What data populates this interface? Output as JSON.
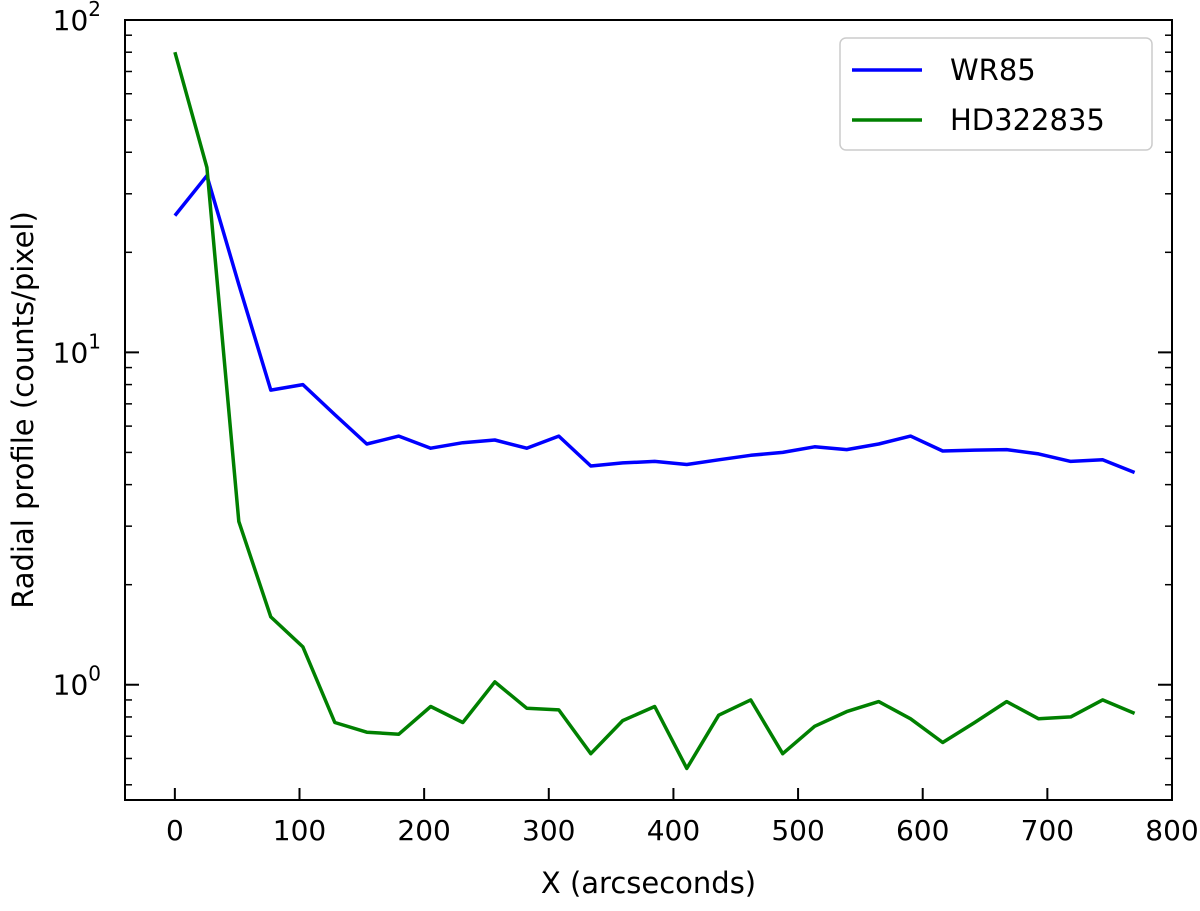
{
  "chart_data": {
    "type": "line",
    "title": "",
    "xlabel": "X (arcseconds)",
    "ylabel": "Radial profile (counts/pixel)",
    "xlim": [
      -40,
      800
    ],
    "ylim": [
      0.45,
      100
    ],
    "yscale": "log",
    "grid": false,
    "legend_position": "top-right",
    "x_ticks": [
      0,
      100,
      200,
      300,
      400,
      500,
      600,
      700,
      800
    ],
    "x_tick_labels": [
      "0",
      "100",
      "200",
      "300",
      "400",
      "500",
      "600",
      "700",
      "800"
    ],
    "y_ticks": [
      {
        "value": 1,
        "base": "10",
        "exp": "0"
      },
      {
        "value": 10,
        "base": "10",
        "exp": "1"
      },
      {
        "value": 100,
        "base": "10",
        "exp": "2"
      }
    ],
    "x": [
      0,
      25.7,
      51.3,
      77,
      102.7,
      128.3,
      154,
      179.7,
      205.3,
      231,
      256.7,
      282.3,
      308,
      333.7,
      359.3,
      385,
      410.7,
      436.3,
      462,
      487.7,
      513.3,
      539,
      564.7,
      590.3,
      616,
      641.7,
      667.3,
      693,
      718.7,
      744.3,
      770
    ],
    "series": [
      {
        "name": "WR85",
        "color": "#0000ff",
        "values": [
          25.8,
          34.0,
          16.0,
          7.7,
          8.0,
          6.5,
          5.3,
          5.6,
          5.15,
          5.35,
          5.45,
          5.15,
          5.6,
          4.55,
          4.65,
          4.7,
          4.6,
          4.75,
          4.9,
          5.0,
          5.2,
          5.1,
          5.3,
          5.6,
          5.05,
          5.08,
          5.1,
          4.95,
          4.7,
          4.75,
          4.35
        ]
      },
      {
        "name": "HD322835",
        "color": "#008000",
        "values": [
          80.0,
          36.0,
          3.1,
          1.6,
          1.3,
          0.77,
          0.72,
          0.71,
          0.86,
          0.77,
          1.02,
          0.85,
          0.84,
          0.62,
          0.78,
          0.86,
          0.56,
          0.81,
          0.9,
          0.62,
          0.75,
          0.83,
          0.89,
          0.79,
          0.67,
          0.77,
          0.89,
          0.79,
          0.8,
          0.9,
          0.82
        ]
      }
    ]
  }
}
